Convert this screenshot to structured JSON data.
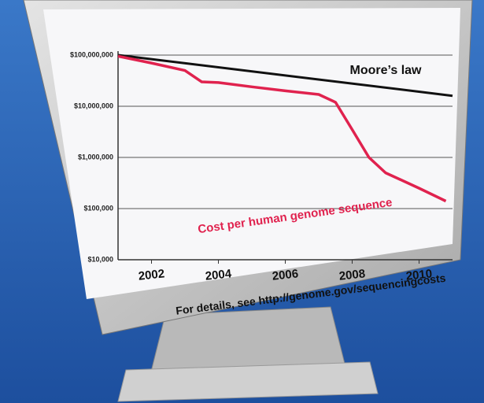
{
  "chart_data": {
    "type": "line",
    "log_scale": true,
    "grid": true,
    "xlim": [
      2001,
      2011
    ],
    "xticks": [
      2002,
      2004,
      2006,
      2008,
      2010
    ],
    "ylim": [
      10000,
      100000000
    ],
    "yticks": [
      {
        "value": 10000,
        "label": "$10,000"
      },
      {
        "value": 100000,
        "label": "$100,000"
      },
      {
        "value": 1000000,
        "label": "$1,000,000"
      },
      {
        "value": 10000000,
        "label": "$10,000,000"
      },
      {
        "value": 100000000,
        "label": "$100,000,000"
      }
    ],
    "series": [
      {
        "name": "Moore’s law",
        "color": "#111111",
        "x": [
          2001,
          2011
        ],
        "values": [
          100000000,
          16000000
        ]
      },
      {
        "name": "Cost per human genome sequence",
        "color": "#e0224e",
        "x": [
          2001,
          2002,
          2003,
          2003.5,
          2004,
          2005,
          2006,
          2007,
          2007.5,
          2008,
          2008.5,
          2009,
          2010,
          2010.8
        ],
        "values": [
          95000000,
          70000000,
          50000000,
          30000000,
          29000000,
          24000000,
          20000000,
          17000000,
          12000000,
          3500000,
          1000000,
          500000,
          250000,
          140000
        ]
      }
    ],
    "annotations": [
      "For details, see http://genome.gov/sequencingcosts"
    ]
  }
}
